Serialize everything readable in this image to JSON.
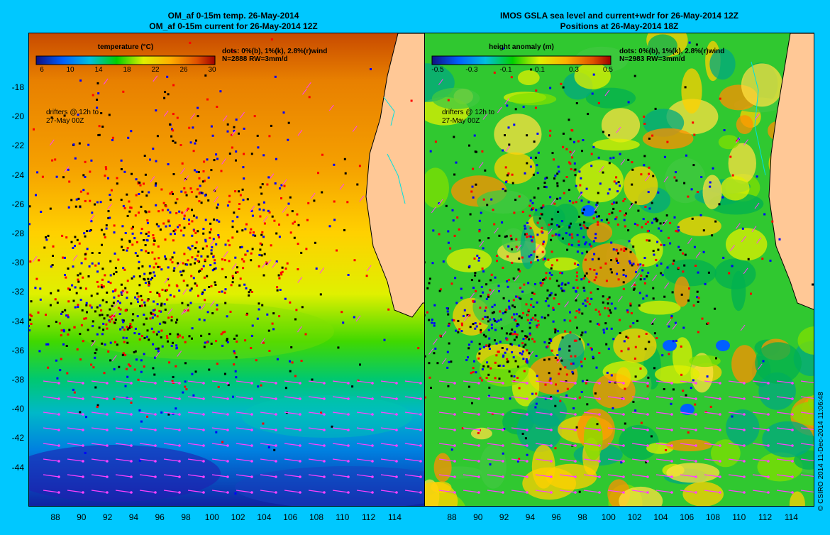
{
  "left_panel": {
    "title_line1": "OM_af 0-15m temp. 26-May-2014",
    "title_line2": "OM_af 0-15m current for 26-May-2014 12Z",
    "colorbar_title": "temperature (°C)",
    "colorbar_labels": [
      "6",
      "10",
      "14",
      "18",
      "22",
      "26",
      "30"
    ],
    "legend_line1": "dots: 0%(b), 1%(k), 2.8%(r)wind",
    "legend_line2": "N=2888 RW=3mm/d",
    "drifter_note_line1": "drifters @ 12h to",
    "drifter_note_line2": "27-May 00Z"
  },
  "right_panel": {
    "title_line1": "IMOS GSLA sea level and current+wdr for 26-May-2014 12Z",
    "title_line2": "Positions at 26-May-2014 18Z",
    "colorbar_title": "height anomaly (m)",
    "colorbar_labels": [
      "-0.5",
      "-0.3",
      "-0.1",
      "0.1",
      "0.3",
      "0.5"
    ],
    "legend_line1": "dots: 0%(b), 1%(k), 2.8%(r)wind",
    "legend_line2": "N=2983 RW=3mm/d",
    "drifter_note_line1": "drifters @ 12h to",
    "drifter_note_line2": "27-May 00Z"
  },
  "y_axis_labels": [
    "-18",
    "-20",
    "-22",
    "-24",
    "-26",
    "-28",
    "-30",
    "-32",
    "-34",
    "-36",
    "-38",
    "-40",
    "-42",
    "-44"
  ],
  "x_axis_labels": [
    "88",
    "90",
    "92",
    "94",
    "96",
    "98",
    "100",
    "102",
    "104",
    "106",
    "108",
    "110",
    "112",
    "114"
  ],
  "credit": "© CSIRO 2014   11-Dec-2014 11:06:48",
  "colors": {
    "background": "#00c8ff",
    "drifter_blue": "#0000ff",
    "drifter_black": "#000000",
    "drifter_red": "#ff0000",
    "wind_arrow": "#ff40ff",
    "land": "#ffc896",
    "coastline_river": "#00e0e0"
  }
}
